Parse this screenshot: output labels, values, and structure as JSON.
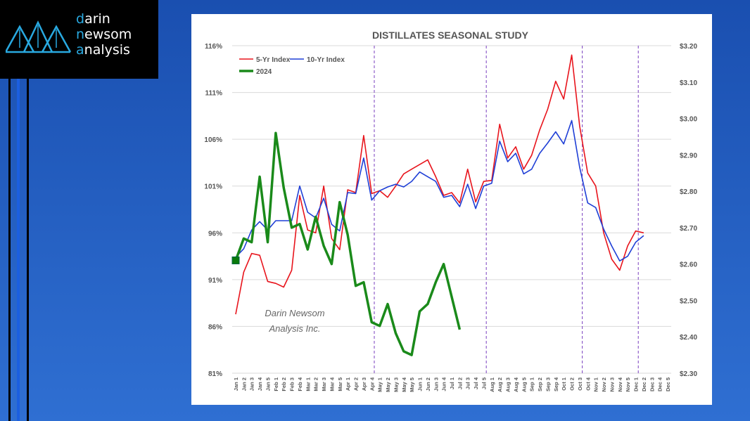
{
  "logo": {
    "line1": "darin",
    "line2": "newsom",
    "line3": "analysis"
  },
  "watermark": {
    "line1": "Darin Newsom",
    "line2": "Analysis Inc."
  },
  "colors": {
    "five_yr": "#e8141c",
    "ten_yr": "#1f3fd6",
    "y2024": "#1a8a1a",
    "marker": "#0a7a0a",
    "divider": "#7a3fbf"
  },
  "chart_data": {
    "type": "line",
    "title": "DISTILLATES SEASONAL STUDY",
    "categories": [
      "Jan 1",
      "Jan 2",
      "Jan 3",
      "Jan 4",
      "Jan 5",
      "Feb 1",
      "Feb 2",
      "Feb 3",
      "Feb 4",
      "Mar 1",
      "Mar 2",
      "Mar 3",
      "Mar 4",
      "Mar 5",
      "Apr 1",
      "Apr 2",
      "Apr 3",
      "Apr 4",
      "May 1",
      "May 2",
      "May 3",
      "May 4",
      "May 5",
      "Jun 1",
      "Jun 2",
      "Jun 3",
      "Jun 4",
      "Jul 1",
      "Jul 2",
      "Jul 3",
      "Jul 4",
      "Jul 5",
      "Aug 1",
      "Aug 2",
      "Aug 3",
      "Aug 4",
      "Aug 5",
      "Sep 1",
      "Sep 2",
      "Sep 3",
      "Sep 4",
      "Oct 1",
      "Oct 2",
      "Oct 3",
      "Oct 4",
      "Nov 1",
      "Nov 2",
      "Nov 3",
      "Nov 4",
      "Nov 5",
      "Dec 1",
      "Dec 2",
      "Dec 3",
      "Dec 4",
      "Dec 5"
    ],
    "y_left": {
      "min": 81,
      "max": 116,
      "ticks": [
        "81%",
        "86%",
        "91%",
        "96%",
        "101%",
        "106%",
        "111%",
        "116%"
      ]
    },
    "y_right": {
      "min": 2.3,
      "max": 3.2,
      "ticks": [
        "$2.30",
        "$2.40",
        "$2.50",
        "$2.60",
        "$2.70",
        "$2.80",
        "$2.90",
        "$3.00",
        "$3.10",
        "$3.20"
      ]
    },
    "dividers_after": [
      "Apr 4",
      "Jul 5",
      "Oct 3",
      "Dec 1"
    ],
    "legend_position": "top-left",
    "series": [
      {
        "name": "5-Yr Index",
        "axis": "left",
        "values": [
          87.3,
          91.8,
          93.8,
          93.6,
          90.8,
          90.6,
          90.2,
          92.0,
          100.0,
          96.3,
          96.0,
          101.0,
          95.4,
          94.2,
          100.6,
          100.3,
          106.4,
          100.2,
          100.5,
          99.8,
          101.0,
          102.3,
          102.8,
          103.3,
          103.8,
          102.0,
          100.0,
          100.3,
          99.2,
          102.8,
          99.3,
          101.5,
          101.6,
          107.6,
          104.0,
          105.2,
          102.8,
          104.3,
          107.0,
          109.2,
          112.2,
          110.3,
          115.0,
          107.4,
          102.4,
          101.0,
          96.0,
          93.2,
          92.0,
          94.6,
          96.2,
          96.0,
          null,
          null,
          null
        ]
      },
      {
        "name": "10-Yr Index",
        "axis": "left",
        "values": [
          93.4,
          94.3,
          96.3,
          97.2,
          96.3,
          97.3,
          97.3,
          97.3,
          101.0,
          98.2,
          97.6,
          99.7,
          96.9,
          96.2,
          100.3,
          100.2,
          104.0,
          99.5,
          100.5,
          100.9,
          101.2,
          100.9,
          101.5,
          102.5,
          102.0,
          101.5,
          99.8,
          100.0,
          98.8,
          101.2,
          98.6,
          101.0,
          101.3,
          105.8,
          103.6,
          104.5,
          102.3,
          102.8,
          104.5,
          105.6,
          106.8,
          105.5,
          108.0,
          103.0,
          99.2,
          98.7,
          96.4,
          94.6,
          93.0,
          93.5,
          95.0,
          95.7,
          null,
          null,
          null
        ]
      },
      {
        "name": "2024",
        "axis": "right",
        "values": [
          2.61,
          2.67,
          2.66,
          2.84,
          2.66,
          2.96,
          2.81,
          2.7,
          2.71,
          2.64,
          2.73,
          2.65,
          2.6,
          2.77,
          2.68,
          2.54,
          2.55,
          2.44,
          2.43,
          2.49,
          2.41,
          2.36,
          2.35,
          2.47,
          2.49,
          2.55,
          2.6,
          2.51,
          2.42,
          null,
          null,
          null,
          null,
          null,
          null,
          null,
          null,
          null,
          null,
          null,
          null,
          null,
          null,
          null,
          null,
          null,
          null,
          null,
          null,
          null,
          null,
          null,
          null,
          null,
          null
        ]
      }
    ]
  }
}
